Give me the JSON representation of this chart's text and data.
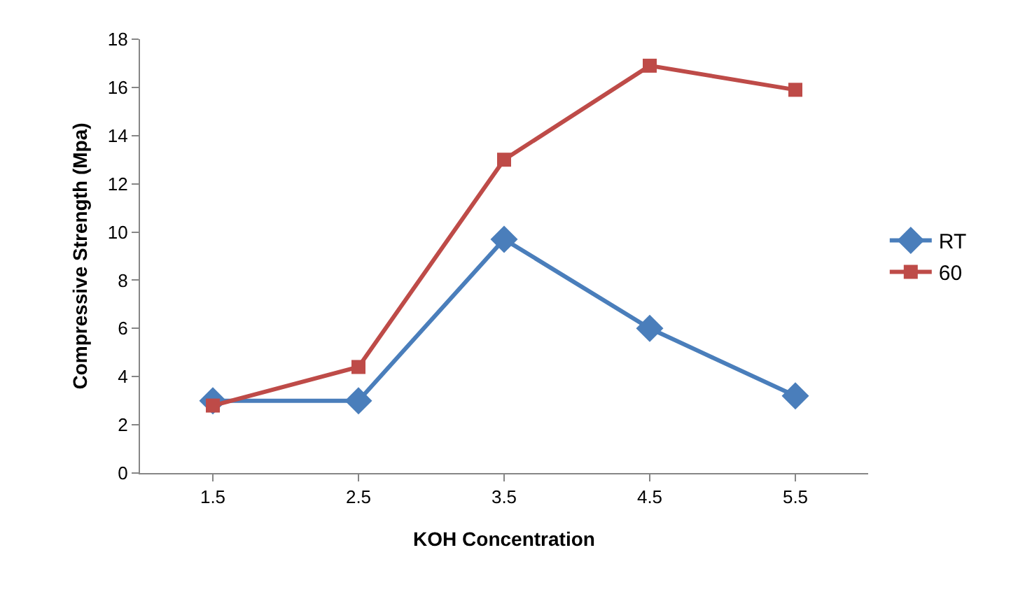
{
  "chart_data": {
    "type": "line",
    "xlabel": "KOH Concentration",
    "ylabel": "Compressive Strength (Mpa)",
    "categories": [
      "1.5",
      "2.5",
      "3.5",
      "4.5",
      "5.5"
    ],
    "series": [
      {
        "name": "RT",
        "color": "#4a7ebb",
        "marker": "diamond",
        "values": [
          3.0,
          3.0,
          9.7,
          6.0,
          3.2
        ]
      },
      {
        "name": "60",
        "color": "#be4b48",
        "marker": "square",
        "values": [
          2.8,
          4.4,
          13.0,
          16.9,
          15.9
        ]
      }
    ],
    "ylim": [
      0,
      18
    ],
    "yticks": [
      0,
      2,
      4,
      6,
      8,
      10,
      12,
      14,
      16,
      18
    ],
    "grid": false,
    "legend": "right",
    "line_style": "solid"
  }
}
